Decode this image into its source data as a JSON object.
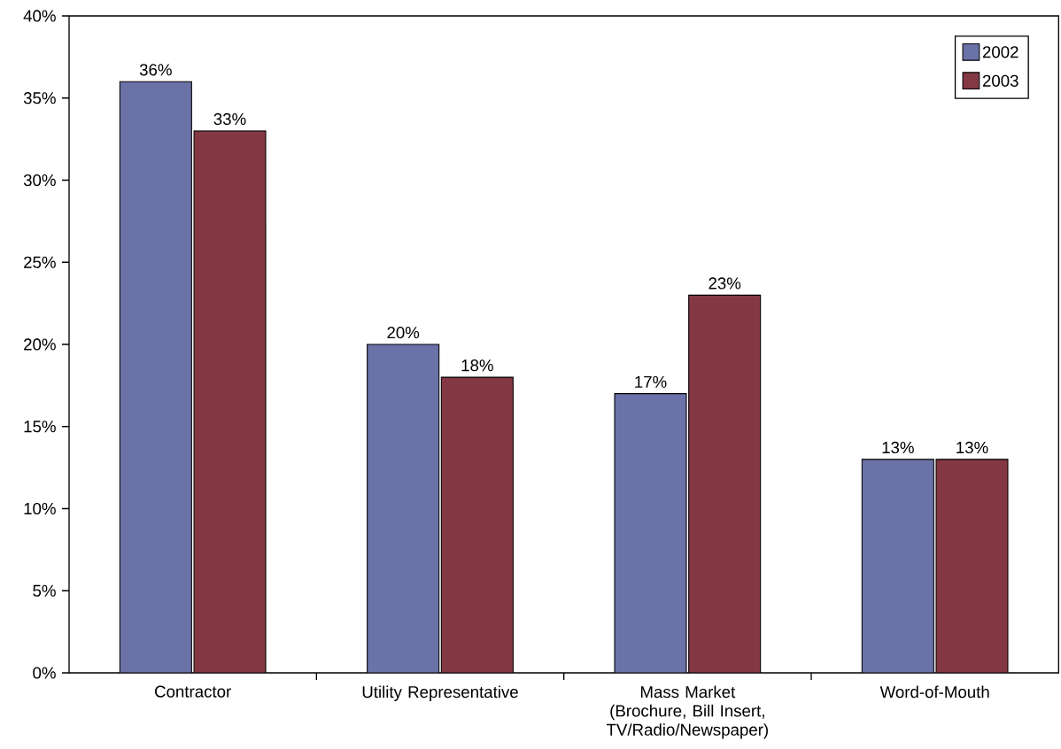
{
  "chart_data": {
    "type": "bar",
    "categories": [
      "Contractor",
      "Utility Representative",
      "Mass Market (Brochure, Bill Insert, TV/Radio/Newspaper)",
      "Word-of-Mouth"
    ],
    "series": [
      {
        "name": "2002",
        "color": "#6b72a8",
        "values": [
          36,
          20,
          17,
          13
        ],
        "value_labels": [
          "36%",
          "20%",
          "17%",
          "13%"
        ]
      },
      {
        "name": "2003",
        "color": "#843843",
        "values": [
          33,
          18,
          23,
          13
        ],
        "value_labels": [
          "33%",
          "18%",
          "23%",
          "13%"
        ]
      }
    ],
    "ylim": [
      0,
      40
    ],
    "yticks": [
      {
        "value": 0,
        "label": "0%"
      },
      {
        "value": 5,
        "label": "5%"
      },
      {
        "value": 10,
        "label": "10%"
      },
      {
        "value": 15,
        "label": "15%"
      },
      {
        "value": 20,
        "label": "20%"
      },
      {
        "value": 25,
        "label": "25%"
      },
      {
        "value": 30,
        "label": "30%"
      },
      {
        "value": 35,
        "label": "35%"
      },
      {
        "value": 40,
        "label": "40%"
      }
    ],
    "grid": false,
    "legend": "top right"
  }
}
